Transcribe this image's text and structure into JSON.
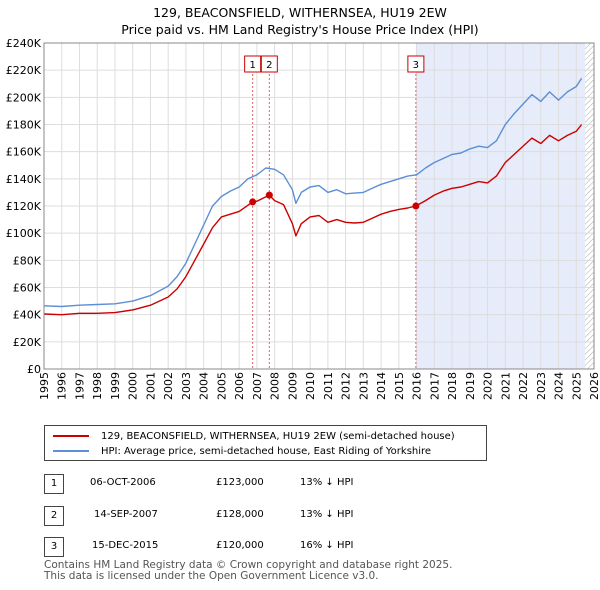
{
  "title": {
    "line1": "129, BEACONSFIELD, WITHERNSEA, HU19 2EW",
    "line2": "Price paid vs. HM Land Registry's House Price Index (HPI)"
  },
  "colors": {
    "price_series": "#cc0000",
    "hpi_series": "#5b8fd6",
    "shade": "#e6ecfa",
    "grid": "#dddddd",
    "marker_line": "#dd6666"
  },
  "legend": {
    "price_label": "129, BEACONSFIELD, WITHERNSEA, HU19 2EW (semi-detached house)",
    "hpi_label": "HPI: Average price, semi-detached house, East Riding of Yorkshire"
  },
  "transactions": [
    {
      "num": "1",
      "date": "06-OCT-2006",
      "price": "£123,000",
      "hpi": "13% ↓ HPI"
    },
    {
      "num": "2",
      "date": "14-SEP-2007",
      "price": "£128,000",
      "hpi": "13% ↓ HPI"
    },
    {
      "num": "3",
      "date": "15-DEC-2015",
      "price": "£120,000",
      "hpi": "16% ↓ HPI"
    }
  ],
  "footer": {
    "line1": "Contains HM Land Registry data © Crown copyright and database right 2025.",
    "line2": "This data is licensed under the Open Government Licence v3.0."
  },
  "chart_data": {
    "type": "line",
    "title": "129, BEACONSFIELD, WITHERNSEA, HU19 2EW — Price paid vs. HM Land Registry's House Price Index (HPI)",
    "xlim": [
      1995,
      2026
    ],
    "ylim": [
      0,
      240000
    ],
    "x_ticks": [
      1995,
      1996,
      1997,
      1998,
      1999,
      2000,
      2001,
      2002,
      2003,
      2004,
      2005,
      2006,
      2007,
      2008,
      2009,
      2010,
      2011,
      2012,
      2013,
      2014,
      2015,
      2016,
      2017,
      2018,
      2019,
      2020,
      2021,
      2022,
      2023,
      2024,
      2025,
      2026
    ],
    "y_ticks": [
      {
        "value": 0,
        "label": "£0"
      },
      {
        "value": 20000,
        "label": "£20K"
      },
      {
        "value": 40000,
        "label": "£40K"
      },
      {
        "value": 60000,
        "label": "£60K"
      },
      {
        "value": 80000,
        "label": "£80K"
      },
      {
        "value": 100000,
        "label": "£100K"
      },
      {
        "value": 120000,
        "label": "£120K"
      },
      {
        "value": 140000,
        "label": "£140K"
      },
      {
        "value": 160000,
        "label": "£160K"
      },
      {
        "value": 180000,
        "label": "£180K"
      },
      {
        "value": 200000,
        "label": "£200K"
      },
      {
        "value": 220000,
        "label": "£220K"
      },
      {
        "value": 240000,
        "label": "£240K"
      }
    ],
    "grid": true,
    "shaded_range": [
      2015.96,
      2025.5
    ],
    "hatched_range": [
      2025.5,
      2026
    ],
    "sale_markers": [
      {
        "label": "1",
        "x": 2006.76,
        "y": 123000
      },
      {
        "label": "2",
        "x": 2007.7,
        "y": 128000
      },
      {
        "label": "3",
        "x": 2015.96,
        "y": 120000
      }
    ],
    "series": [
      {
        "name": "129, BEACONSFIELD, WITHERNSEA, HU19 2EW (semi-detached house)",
        "color": "#cc0000",
        "x": [
          1995,
          1996,
          1997,
          1998,
          1999,
          2000,
          2001,
          2002,
          2002.5,
          2003,
          2003.5,
          2004,
          2004.5,
          2005,
          2005.5,
          2006,
          2006.76,
          2007,
          2007.7,
          2008,
          2008.5,
          2009,
          2009.2,
          2009.5,
          2010,
          2010.5,
          2011,
          2011.5,
          2012,
          2012.5,
          2013,
          2013.5,
          2014,
          2014.5,
          2015,
          2015.5,
          2015.96,
          2016.5,
          2017,
          2017.5,
          2018,
          2018.5,
          2019,
          2019.5,
          2020,
          2020.5,
          2021,
          2021.5,
          2022,
          2022.5,
          2023,
          2023.5,
          2024,
          2024.5,
          2025,
          2025.3
        ],
        "y": [
          40500,
          40000,
          41000,
          41000,
          41500,
          43500,
          47000,
          53000,
          59000,
          68000,
          80000,
          92000,
          104000,
          112000,
          114000,
          116000,
          123000,
          123500,
          128000,
          124000,
          121000,
          107000,
          98000,
          107000,
          112000,
          113000,
          108000,
          110000,
          108000,
          107500,
          108000,
          111000,
          114000,
          116000,
          117500,
          118500,
          120000,
          124000,
          128000,
          131000,
          133000,
          134000,
          136000,
          138000,
          137000,
          142000,
          152000,
          158000,
          164000,
          170000,
          166000,
          172000,
          168000,
          172000,
          175000,
          180000
        ]
      },
      {
        "name": "HPI: Average price, semi-detached house, East Riding of Yorkshire",
        "color": "#5b8fd6",
        "x": [
          1995,
          1996,
          1997,
          1998,
          1999,
          2000,
          2001,
          2002,
          2002.5,
          2003,
          2003.5,
          2004,
          2004.5,
          2005,
          2005.5,
          2006,
          2006.5,
          2007,
          2007.5,
          2008,
          2008.5,
          2009,
          2009.2,
          2009.5,
          2010,
          2010.5,
          2011,
          2011.5,
          2012,
          2012.5,
          2013,
          2013.5,
          2014,
          2014.5,
          2015,
          2015.5,
          2016,
          2016.5,
          2017,
          2017.5,
          2018,
          2018.5,
          2019,
          2019.5,
          2020,
          2020.5,
          2021,
          2021.5,
          2022,
          2022.5,
          2023,
          2023.5,
          2024,
          2024.5,
          2025,
          2025.3
        ],
        "y": [
          46500,
          46000,
          47000,
          47500,
          48000,
          50000,
          54000,
          61000,
          68000,
          78000,
          92000,
          106000,
          120000,
          127000,
          131000,
          134000,
          140000,
          143000,
          148000,
          147000,
          143000,
          132000,
          122000,
          130000,
          134000,
          135000,
          130000,
          132000,
          129000,
          129500,
          130000,
          133000,
          136000,
          138000,
          140000,
          142000,
          143000,
          148000,
          152000,
          155000,
          158000,
          159000,
          162000,
          164000,
          163000,
          168000,
          180000,
          188000,
          195000,
          202000,
          197000,
          204000,
          198000,
          204000,
          208000,
          214000
        ]
      }
    ]
  }
}
